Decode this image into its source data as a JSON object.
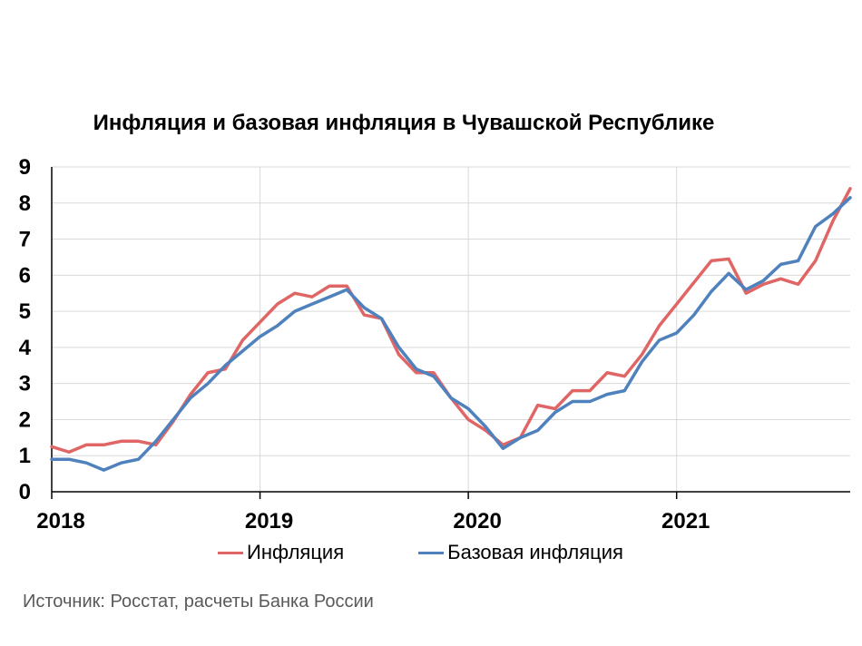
{
  "chart_data": {
    "type": "line",
    "title": "Инфляция и базовая инфляция в Чувашской Республике",
    "xlabel": "",
    "ylabel": "",
    "ylim": [
      0,
      9
    ],
    "yticks": [
      "0",
      "1",
      "2",
      "3",
      "4",
      "5",
      "6",
      "7",
      "8",
      "9"
    ],
    "xlim": [
      0,
      46
    ],
    "xticks": [
      {
        "label": "2018",
        "index": 0
      },
      {
        "label": "2019",
        "index": 12
      },
      {
        "label": "2020",
        "index": 24
      },
      {
        "label": "2021",
        "index": 36
      }
    ],
    "grid": true,
    "legend_position": "bottom",
    "series": [
      {
        "name": "Инфляция",
        "color": "#e06666",
        "values": [
          1.25,
          1.1,
          1.3,
          1.3,
          1.4,
          1.4,
          1.3,
          1.95,
          2.7,
          3.3,
          3.4,
          4.2,
          4.7,
          5.2,
          5.5,
          5.4,
          5.7,
          5.7,
          4.9,
          4.8,
          3.8,
          3.3,
          3.3,
          2.6,
          2.0,
          1.7,
          1.3,
          1.5,
          2.4,
          2.3,
          2.8,
          2.8,
          3.3,
          3.2,
          3.8,
          4.6,
          5.2,
          5.8,
          6.4,
          6.45,
          5.5,
          5.75,
          5.9,
          5.75,
          6.4,
          7.5,
          8.4
        ]
      },
      {
        "name": "Базовая инфляция",
        "color": "#4f81bd",
        "values": [
          0.9,
          0.9,
          0.8,
          0.6,
          0.8,
          0.9,
          1.4,
          2.0,
          2.6,
          3.0,
          3.5,
          3.9,
          4.3,
          4.6,
          5.0,
          5.2,
          5.4,
          5.6,
          5.1,
          4.8,
          4.0,
          3.4,
          3.2,
          2.6,
          2.3,
          1.8,
          1.2,
          1.5,
          1.7,
          2.2,
          2.5,
          2.5,
          2.7,
          2.8,
          3.6,
          4.2,
          4.4,
          4.9,
          5.55,
          6.05,
          5.6,
          5.85,
          6.3,
          6.4,
          7.35,
          7.7,
          8.15
        ]
      }
    ]
  },
  "source_note": "Источник: Росстат, расчеты Банка России"
}
